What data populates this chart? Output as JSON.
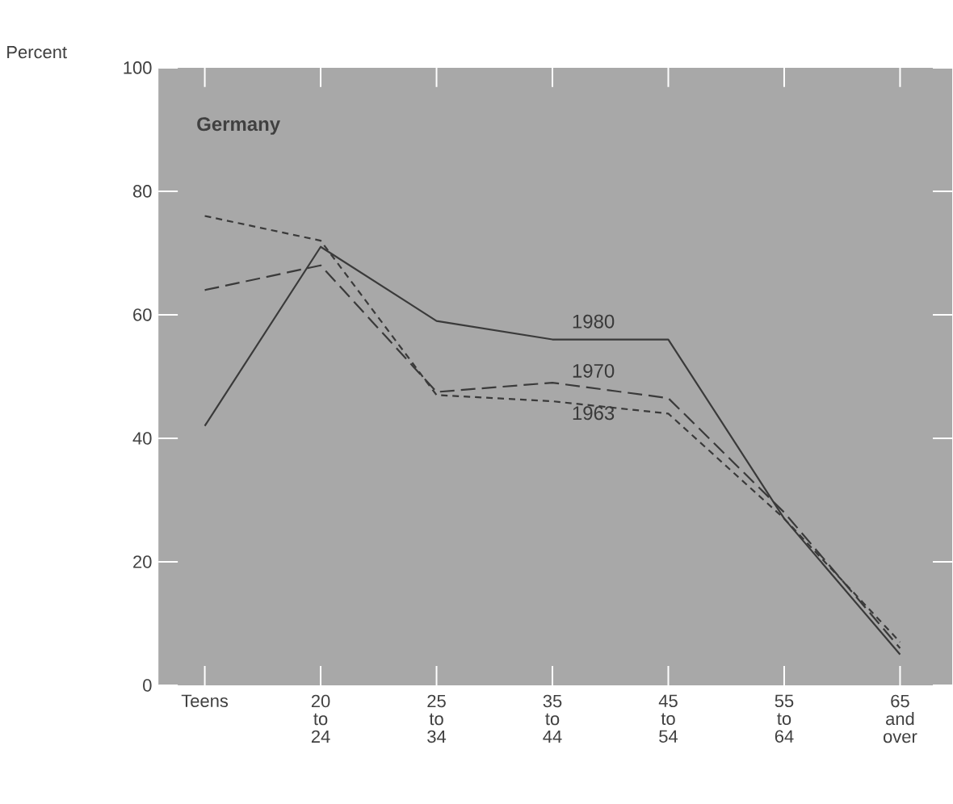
{
  "chart_data": {
    "type": "line",
    "title": "Germany",
    "ylabel": "Percent",
    "categories": [
      "Teens",
      "20 to 24",
      "25 to 34",
      "35 to 44",
      "45 to 54",
      "55 to 64",
      "65 and over"
    ],
    "series": [
      {
        "name": "1980",
        "color": "#3a3a3a",
        "line_style": "solid",
        "values": [
          42,
          71,
          59,
          56,
          56,
          27,
          5
        ]
      },
      {
        "name": "1970",
        "color": "#3a3a3a",
        "line_style": "dashed",
        "values": [
          64,
          68,
          47.5,
          49,
          46.5,
          28,
          6
        ]
      },
      {
        "name": "1963",
        "color": "#3a3a3a",
        "line_style": "dotted",
        "values": [
          76,
          72,
          47,
          46,
          44,
          27,
          7
        ]
      }
    ],
    "ylim": [
      0,
      100
    ],
    "yticks": [
      0,
      20,
      40,
      60,
      80,
      100
    ],
    "grid": false,
    "legend": false,
    "marker": "none"
  }
}
